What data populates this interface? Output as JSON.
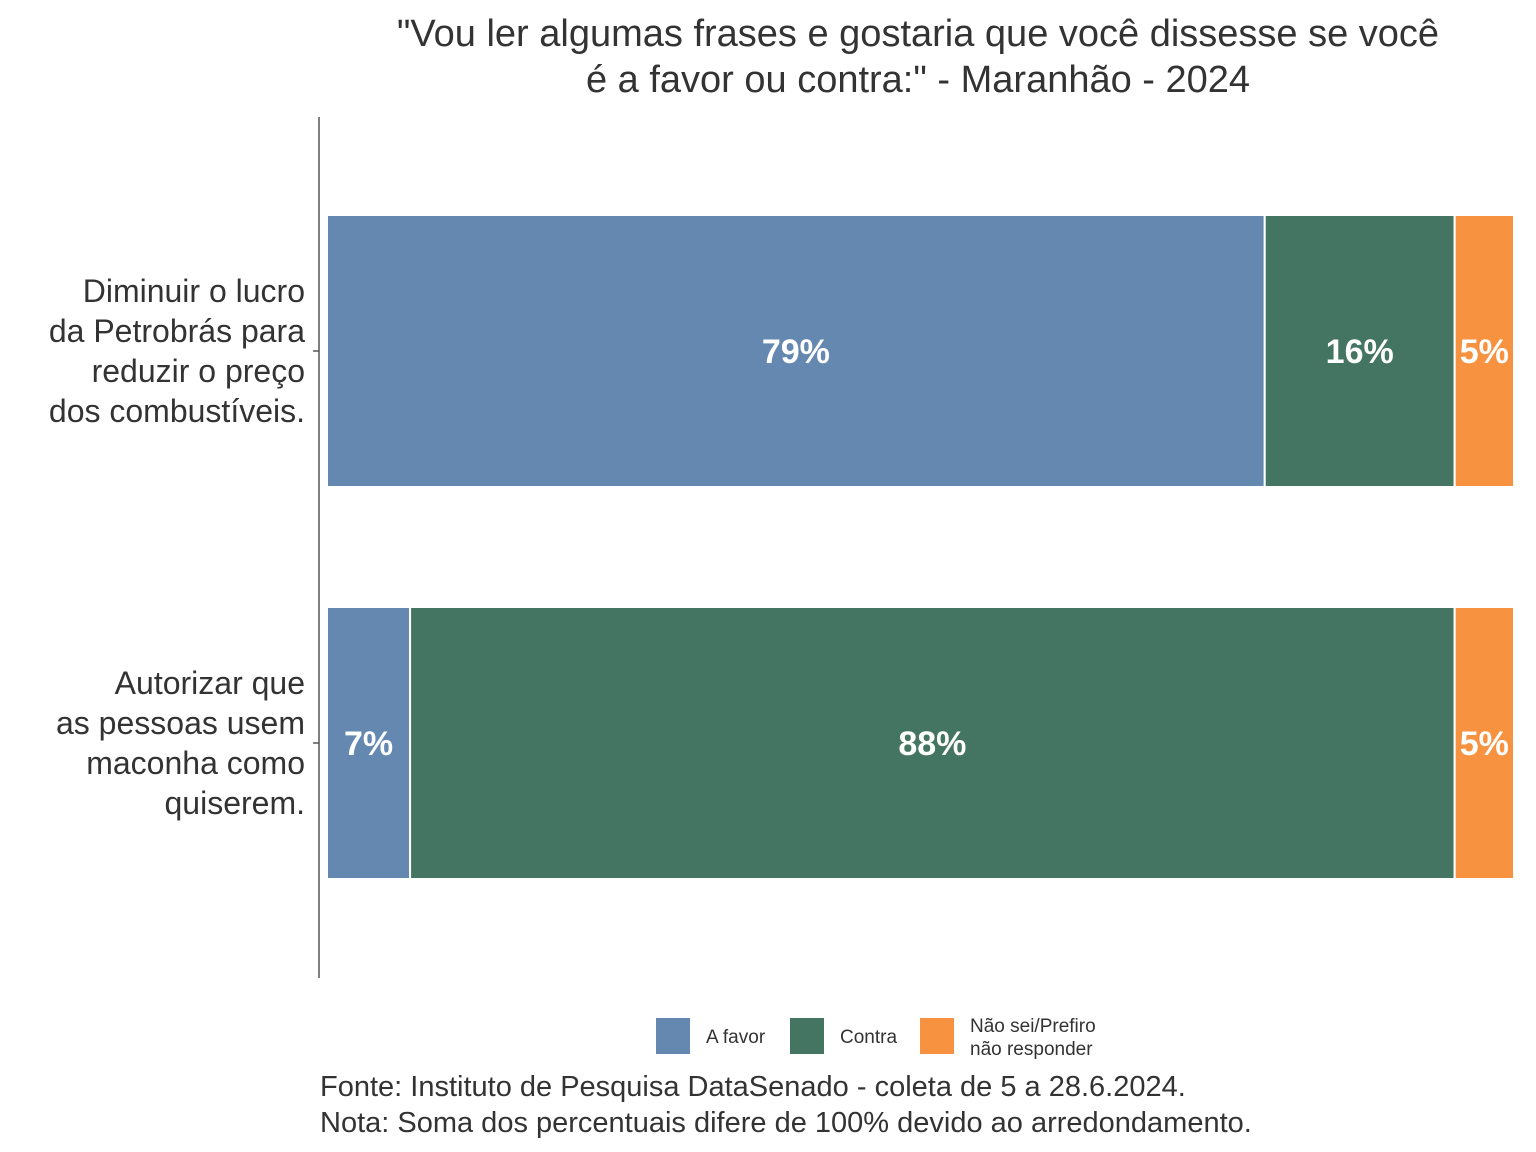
{
  "chart_data": {
    "type": "bar",
    "orientation": "horizontal",
    "stacked": true,
    "title": "\"Vou ler algumas frases e gostaria que você dissesse se você\né a favor ou contra:\" - Maranhão - 2024",
    "categories": [
      "Diminuir o lucro\nda Petrobrás para\nreduzir o preço\ndos combustíveis.",
      "Autorizar que\nas pessoas usem\nmaconha como\nquiserem."
    ],
    "series": [
      {
        "name": "A favor",
        "values": [
          79,
          7
        ],
        "color": "#6488b0"
      },
      {
        "name": "Contra",
        "values": [
          16,
          88
        ],
        "color": "#447563"
      },
      {
        "name": "Não sei/Prefiro\nnão responder",
        "values": [
          5,
          5
        ],
        "color": "#f79240"
      }
    ],
    "value_labels": [
      [
        "79%",
        "7%"
      ],
      [
        "16%",
        "88%"
      ],
      [
        "5%",
        "5%"
      ]
    ],
    "xlim": [
      0,
      100
    ],
    "grid": false,
    "legend_position": "bottom",
    "caption": "Fonte: Instituto de Pesquisa DataSenado - coleta de 5 a 28.6.2024.\nNota: Soma dos percentuais difere de 100% devido ao arredondamento."
  }
}
